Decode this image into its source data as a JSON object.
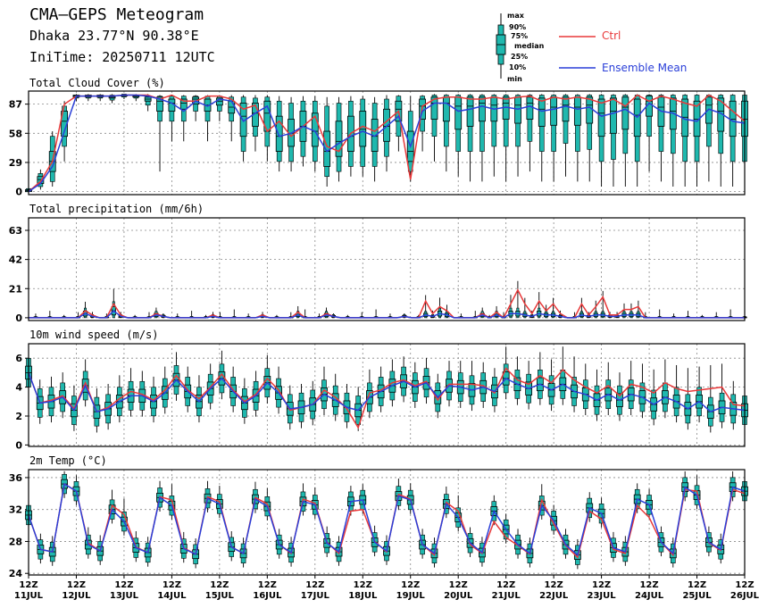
{
  "header": {
    "title": "CMA—GEPS Meteogram",
    "location": "Dhaka 23.77°N 90.38°E",
    "init_time": "IniTime: 20250711 12UTC"
  },
  "legend": {
    "box_labels": [
      "max",
      "90%",
      "75%",
      "median",
      "25%",
      "10%",
      "min"
    ],
    "ctrl_label": "Ctrl",
    "mean_label": "Ensemble Mean",
    "ctrl_color": "#e8393a",
    "mean_color": "#2a3fd8",
    "box_color": "#1fb8ae"
  },
  "x_axis": {
    "tick_labels": [
      [
        "12Z",
        "11JUL"
      ],
      [
        "12Z",
        "12JUL"
      ],
      [
        "12Z",
        "13JUL"
      ],
      [
        "12Z",
        "14JUL"
      ],
      [
        "12Z",
        "15JUL"
      ],
      [
        "12Z",
        "16JUL"
      ],
      [
        "12Z",
        "17JUL"
      ],
      [
        "12Z",
        "18JUL"
      ],
      [
        "12Z",
        "19JUL"
      ],
      [
        "12Z",
        "20JUL"
      ],
      [
        "12Z",
        "21JUL"
      ],
      [
        "12Z",
        "22JUL"
      ],
      [
        "12Z",
        "23JUL"
      ],
      [
        "12Z",
        "24JUL"
      ],
      [
        "12Z",
        "25JUL"
      ],
      [
        "12Z",
        "26JUL"
      ]
    ],
    "steps_per_day": 4
  },
  "chart_data": [
    {
      "type": "box-line",
      "title": "Total Cloud Cover (%)",
      "ylim": [
        -3,
        100
      ],
      "yticks": [
        0,
        29,
        58,
        87
      ],
      "grid": true,
      "series": [
        {
          "name": "Ctrl",
          "values": [
            0,
            10,
            30,
            87,
            95,
            95,
            95,
            95,
            96,
            96,
            96,
            92,
            96,
            90,
            90,
            95,
            95,
            92,
            82,
            86,
            60,
            70,
            55,
            65,
            75,
            45,
            40,
            58,
            65,
            60,
            70,
            80,
            12,
            85,
            92,
            94,
            94,
            92,
            92,
            94,
            92,
            94,
            95,
            90,
            94,
            92,
            94,
            92,
            88,
            92,
            85,
            96,
            90,
            95,
            92,
            88,
            85,
            96,
            90,
            80,
            70
          ]
        },
        {
          "name": "Ensemble Mean",
          "values": [
            0,
            8,
            25,
            60,
            95,
            95,
            95,
            95,
            96,
            96,
            95,
            92,
            88,
            80,
            90,
            85,
            92,
            90,
            70,
            78,
            85,
            55,
            58,
            65,
            60,
            40,
            48,
            55,
            60,
            55,
            65,
            75,
            45,
            80,
            88,
            88,
            80,
            82,
            85,
            82,
            84,
            82,
            85,
            80,
            82,
            85,
            82,
            84,
            75,
            78,
            82,
            74,
            88,
            80,
            78,
            72,
            70,
            82,
            78,
            70,
            68
          ]
        }
      ],
      "boxes": [
        [
          0,
          0,
          0,
          1,
          2,
          3,
          5
        ],
        [
          2,
          5,
          8,
          12,
          15,
          18,
          22
        ],
        [
          5,
          10,
          20,
          30,
          40,
          55,
          60
        ],
        [
          30,
          45,
          55,
          70,
          80,
          85,
          90
        ],
        [
          90,
          93,
          94,
          95,
          96,
          96,
          97
        ],
        [
          90,
          93,
          94,
          95,
          96,
          96,
          97
        ],
        [
          90,
          93,
          94,
          95,
          96,
          96,
          97
        ],
        [
          88,
          91,
          93,
          94,
          95,
          96,
          97
        ],
        [
          92,
          94,
          95,
          96,
          96,
          97,
          97
        ],
        [
          90,
          93,
          94,
          95,
          96,
          96,
          97
        ],
        [
          80,
          86,
          90,
          92,
          94,
          95,
          97
        ],
        [
          20,
          70,
          80,
          90,
          94,
          95,
          96
        ],
        [
          50,
          70,
          80,
          88,
          92,
          95,
          96
        ],
        [
          50,
          70,
          82,
          88,
          92,
          95,
          96
        ],
        [
          70,
          80,
          87,
          92,
          94,
          95,
          96
        ],
        [
          50,
          70,
          80,
          86,
          92,
          95,
          96
        ],
        [
          70,
          80,
          86,
          90,
          93,
          95,
          96
        ],
        [
          50,
          70,
          78,
          84,
          90,
          94,
          96
        ],
        [
          30,
          40,
          55,
          75,
          88,
          94,
          96
        ],
        [
          40,
          55,
          65,
          78,
          88,
          93,
          96
        ],
        [
          30,
          45,
          60,
          78,
          90,
          94,
          96
        ],
        [
          20,
          30,
          40,
          55,
          75,
          90,
          95
        ],
        [
          20,
          30,
          45,
          58,
          72,
          88,
          94
        ],
        [
          25,
          35,
          50,
          65,
          80,
          90,
          95
        ],
        [
          20,
          30,
          45,
          60,
          78,
          90,
          95
        ],
        [
          5,
          15,
          25,
          40,
          60,
          85,
          94
        ],
        [
          10,
          20,
          35,
          50,
          70,
          88,
          94
        ],
        [
          15,
          25,
          40,
          55,
          75,
          90,
          95
        ],
        [
          15,
          25,
          45,
          62,
          80,
          92,
          95
        ],
        [
          10,
          25,
          40,
          55,
          72,
          88,
          94
        ],
        [
          20,
          35,
          50,
          65,
          82,
          92,
          96
        ],
        [
          40,
          55,
          70,
          82,
          90,
          95,
          96
        ],
        [
          10,
          20,
          30,
          40,
          60,
          80,
          95
        ],
        [
          40,
          60,
          72,
          85,
          92,
          95,
          96
        ],
        [
          30,
          55,
          72,
          88,
          94,
          96,
          97
        ],
        [
          20,
          45,
          70,
          88,
          94,
          96,
          97
        ],
        [
          15,
          40,
          62,
          85,
          94,
          96,
          97
        ],
        [
          10,
          40,
          65,
          85,
          94,
          96,
          97
        ],
        [
          10,
          40,
          70,
          88,
          94,
          96,
          97
        ],
        [
          15,
          45,
          70,
          86,
          94,
          96,
          97
        ],
        [
          10,
          45,
          72,
          88,
          94,
          96,
          97
        ],
        [
          15,
          45,
          68,
          86,
          94,
          96,
          97
        ],
        [
          20,
          50,
          72,
          88,
          94,
          96,
          97
        ],
        [
          10,
          40,
          65,
          82,
          93,
          96,
          97
        ],
        [
          10,
          40,
          66,
          84,
          94,
          96,
          97
        ],
        [
          15,
          48,
          70,
          86,
          94,
          96,
          97
        ],
        [
          10,
          40,
          66,
          84,
          94,
          96,
          97
        ],
        [
          10,
          42,
          68,
          86,
          94,
          96,
          97
        ],
        [
          5,
          30,
          55,
          78,
          92,
          96,
          97
        ],
        [
          5,
          32,
          58,
          80,
          93,
          96,
          97
        ],
        [
          5,
          38,
          62,
          84,
          94,
          96,
          97
        ],
        [
          5,
          30,
          55,
          76,
          92,
          96,
          97
        ],
        [
          20,
          55,
          75,
          90,
          95,
          96,
          97
        ],
        [
          10,
          40,
          65,
          84,
          94,
          96,
          97
        ],
        [
          5,
          38,
          62,
          80,
          93,
          96,
          97
        ],
        [
          5,
          30,
          55,
          74,
          92,
          96,
          97
        ],
        [
          5,
          30,
          55,
          72,
          90,
          96,
          97
        ],
        [
          10,
          45,
          68,
          86,
          94,
          96,
          97
        ],
        [
          5,
          38,
          60,
          80,
          93,
          96,
          97
        ],
        [
          5,
          30,
          55,
          72,
          90,
          96,
          97
        ],
        [
          5,
          30,
          55,
          72,
          90,
          96,
          97
        ]
      ]
    },
    {
      "type": "box-line",
      "title": "Total precipitation (mm/6h)",
      "ylim": [
        -2,
        72
      ],
      "yticks": [
        0,
        21,
        42,
        63
      ],
      "grid": true,
      "series": [
        {
          "name": "Ctrl",
          "values": [
            0,
            0,
            0,
            0,
            0,
            0,
            0,
            0,
            5,
            2,
            0,
            0,
            10,
            2,
            0,
            0,
            0,
            0,
            3,
            1,
            0,
            0,
            0,
            0,
            0,
            0,
            2,
            0,
            0,
            0,
            0,
            0,
            0,
            2,
            0,
            0,
            0,
            0,
            4,
            0,
            0,
            0,
            3,
            1,
            0,
            0,
            0,
            0,
            0,
            0,
            0,
            0,
            0,
            1,
            0,
            0,
            12,
            3,
            8,
            5,
            0,
            0,
            0,
            0,
            3,
            0,
            4,
            0,
            10,
            20,
            10,
            3,
            12,
            5,
            10,
            3,
            0,
            0,
            10,
            2,
            8,
            15,
            2,
            2,
            6,
            6,
            8,
            0,
            0,
            0,
            0,
            0,
            0,
            0,
            0,
            0,
            0,
            0,
            0,
            0,
            0,
            0
          ]
        },
        {
          "name": "Ensemble Mean",
          "values": [
            0,
            0,
            0,
            0,
            0,
            0,
            0,
            0,
            3,
            1,
            0,
            0,
            5,
            1,
            0,
            0,
            0,
            0,
            2,
            1,
            0,
            0,
            0,
            0,
            0,
            0,
            1,
            0,
            0,
            0,
            0,
            0,
            0,
            1,
            0,
            0,
            0,
            0,
            2,
            0,
            0,
            0,
            2,
            1,
            0,
            0,
            0,
            0,
            0,
            0,
            0,
            0,
            0,
            1,
            0,
            0,
            2,
            1,
            3,
            2,
            0,
            0,
            0,
            0,
            2,
            0,
            2,
            0,
            3,
            3,
            2,
            1,
            3,
            2,
            2,
            1,
            0,
            0,
            2,
            1,
            2,
            2,
            1,
            1,
            2,
            2,
            2,
            0,
            0,
            0,
            0,
            0,
            0,
            0,
            0,
            0,
            0,
            0,
            0,
            0,
            0,
            0
          ]
        }
      ],
      "box_sparse": true,
      "boxes_note": "generated in script from series with whiskers"
    },
    {
      "type": "box-line",
      "title": "10m wind speed (m/s)",
      "ylim": [
        -0.1,
        7
      ],
      "yticks": [
        0,
        2,
        4,
        6
      ],
      "grid": true,
      "series": [
        {
          "name": "Ctrl",
          "values": [
            5.0,
            2.9,
            3.1,
            3.4,
            2.5,
            4.3,
            2.3,
            2.6,
            3.2,
            3.7,
            3.5,
            3.1,
            3.8,
            4.8,
            3.8,
            3.2,
            4.0,
            4.9,
            3.8,
            3.0,
            3.5,
            4.6,
            3.8,
            2.4,
            2.6,
            2.8,
            3.8,
            3.3,
            2.5,
            1.2,
            3.6,
            3.8,
            4.3,
            4.5,
            4.1,
            4.4,
            3.1,
            4.2,
            4.2,
            4.2,
            4.1,
            3.6,
            5.3,
            4.5,
            4.2,
            4.8,
            4.3,
            5.2,
            4.5,
            4.0,
            3.6,
            4.1,
            3.4,
            4.2,
            4.0,
            3.6,
            4.3,
            3.9,
            3.7,
            3.8,
            3.9,
            4.0,
            2.8,
            2.7
          ]
        },
        {
          "name": "Ensemble Mean",
          "values": [
            5.0,
            2.9,
            3.0,
            3.3,
            2.4,
            4.1,
            2.3,
            2.5,
            3.0,
            3.4,
            3.4,
            3.0,
            3.6,
            4.5,
            3.7,
            3.0,
            3.9,
            4.6,
            3.7,
            2.9,
            3.4,
            4.3,
            3.6,
            2.5,
            2.6,
            2.8,
            3.5,
            3.1,
            2.6,
            2.4,
            3.3,
            3.7,
            4.1,
            4.4,
            4.0,
            4.3,
            3.3,
            4.1,
            4.0,
            3.8,
            4.0,
            3.7,
            4.6,
            4.2,
            3.9,
            4.2,
            3.8,
            4.2,
            3.7,
            3.5,
            3.1,
            3.5,
            3.1,
            3.5,
            3.3,
            2.8,
            3.3,
            3.0,
            2.5,
            3.0,
            2.3,
            2.6,
            2.5,
            2.4
          ]
        }
      ]
    },
    {
      "type": "box-line",
      "title": "2m Temp (°C)",
      "ylim": [
        23.8,
        37
      ],
      "yticks": [
        24,
        28,
        32,
        36
      ],
      "grid": true,
      "series": [
        {
          "name": "Ctrl",
          "values": [
            31.3,
            27.0,
            26.7,
            35.2,
            34.3,
            27.8,
            26.8,
            32.5,
            31.4,
            27.3,
            26.6,
            33.6,
            33.2,
            27.2,
            26.4,
            33.6,
            33.0,
            27.3,
            26.5,
            33.5,
            32.7,
            27.6,
            26.5,
            33.3,
            32.8,
            27.9,
            26.5,
            31.8,
            32.0,
            28.0,
            26.7,
            33.9,
            33.3,
            27.6,
            26.3,
            32.9,
            31.8,
            27.6,
            26.5,
            30.5,
            28.5,
            27.5,
            26.4,
            33.2,
            30.2,
            27.5,
            26.0,
            31.8,
            30.8,
            27.0,
            26.5,
            32.5,
            31.0,
            27.9,
            26.3,
            34.5,
            34.3,
            27.8,
            26.9,
            34.5,
            34.0
          ]
        },
        {
          "name": "Ensemble Mean",
          "values": [
            31.3,
            27.0,
            26.7,
            35.2,
            34.3,
            27.6,
            26.8,
            32.0,
            30.5,
            27.2,
            26.6,
            33.5,
            32.5,
            27.1,
            26.4,
            33.4,
            32.7,
            27.3,
            26.5,
            33.3,
            32.4,
            27.6,
            26.6,
            33.0,
            32.6,
            27.8,
            26.7,
            33.0,
            33.2,
            27.9,
            26.8,
            33.7,
            33.2,
            27.6,
            26.5,
            32.7,
            31.0,
            27.8,
            26.6,
            31.8,
            29.5,
            27.6,
            26.5,
            32.5,
            30.6,
            27.6,
            26.3,
            32.2,
            31.5,
            27.2,
            26.7,
            33.3,
            32.6,
            27.9,
            26.5,
            34.8,
            33.8,
            27.9,
            27.0,
            34.8,
            34.3
          ]
        }
      ]
    }
  ]
}
